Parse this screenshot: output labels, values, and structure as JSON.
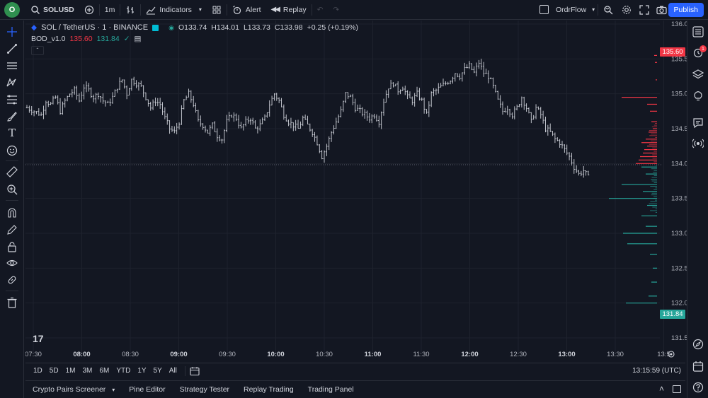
{
  "topbar": {
    "logo_letter": "O",
    "symbol": "SOLUSD",
    "interval": "1m",
    "indicators_label": "Indicators",
    "alert_label": "Alert",
    "replay_label": "Replay",
    "layout_name": "OrdrFlow",
    "publish_label": "Publish"
  },
  "legend": {
    "title": "SOL / TetherUS · 1 · BINANCE",
    "open": "O133.74",
    "high": "H134.01",
    "low": "L133.73",
    "close": "C133.98",
    "change": "+0.25 (+0.19%)",
    "indicator_name": "BOD_v1.0",
    "indicator_val1": "135.60",
    "indicator_val2": "131.84"
  },
  "price_axis": {
    "ticks": [
      "136.00",
      "135.50",
      "135.00",
      "134.50",
      "134.00",
      "133.50",
      "133.00",
      "132.50",
      "132.00",
      "131.50"
    ],
    "tag_upper": "135.60",
    "tag_lower": "131.84"
  },
  "time_axis": {
    "ticks": [
      "07:30",
      "08:00",
      "08:30",
      "09:00",
      "09:30",
      "10:00",
      "10:30",
      "11:00",
      "11:30",
      "12:00",
      "12:30",
      "13:00",
      "13:30",
      "13:5"
    ]
  },
  "range_bar": {
    "ranges": [
      "1D",
      "5D",
      "1M",
      "3M",
      "6M",
      "YTD",
      "1Y",
      "5Y",
      "All"
    ],
    "clock": "13:15:59 (UTC)"
  },
  "bottom_panel": {
    "tabs": [
      "Crypto Pairs Screener",
      "Pine Editor",
      "Strategy Tester",
      "Replay Trading",
      "Trading Panel"
    ]
  },
  "alerts_badge": "1",
  "colors": {
    "background": "#131722",
    "candle": "#d1d4dc",
    "up_profile": "#26a69a",
    "down_profile": "#f23645",
    "accent": "#2962ff",
    "tag_red": "#f23645",
    "tag_green": "#26a69a"
  },
  "chart_data": {
    "type": "ohlc",
    "symbol": "SOL / TetherUS",
    "ylim": [
      131.5,
      136.0
    ],
    "close_path": [
      [
        0,
        134.8
      ],
      [
        3,
        134.75
      ],
      [
        6,
        134.7
      ],
      [
        8,
        134.9
      ],
      [
        10,
        134.85
      ],
      [
        12,
        134.95
      ],
      [
        14,
        134.75
      ],
      [
        16,
        134.9
      ],
      [
        18,
        135.0
      ],
      [
        20,
        135.05
      ],
      [
        22,
        134.9
      ],
      [
        24,
        135.1
      ],
      [
        26,
        135.05
      ],
      [
        28,
        134.95
      ],
      [
        30,
        135.0
      ],
      [
        32,
        134.9
      ],
      [
        34,
        134.85
      ],
      [
        36,
        134.95
      ],
      [
        38,
        135.1
      ],
      [
        40,
        135.2
      ],
      [
        42,
        135.0
      ],
      [
        44,
        135.2
      ],
      [
        46,
        135.15
      ],
      [
        48,
        135.1
      ],
      [
        50,
        134.95
      ],
      [
        52,
        134.8
      ],
      [
        54,
        134.9
      ],
      [
        56,
        134.85
      ],
      [
        58,
        134.65
      ],
      [
        60,
        134.5
      ],
      [
        62,
        134.45
      ],
      [
        64,
        134.6
      ],
      [
        66,
        134.9
      ],
      [
        68,
        135.0
      ],
      [
        70,
        134.85
      ],
      [
        72,
        134.6
      ],
      [
        74,
        134.55
      ],
      [
        76,
        134.45
      ],
      [
        78,
        134.55
      ],
      [
        80,
        134.4
      ],
      [
        82,
        134.35
      ],
      [
        84,
        134.6
      ],
      [
        86,
        134.7
      ],
      [
        88,
        134.65
      ],
      [
        90,
        134.5
      ],
      [
        92,
        134.6
      ],
      [
        94,
        134.65
      ],
      [
        96,
        134.5
      ],
      [
        98,
        134.55
      ],
      [
        100,
        134.65
      ],
      [
        102,
        134.85
      ],
      [
        104,
        135.0
      ],
      [
        106,
        134.9
      ],
      [
        108,
        134.7
      ],
      [
        110,
        134.6
      ],
      [
        112,
        134.55
      ],
      [
        114,
        134.5
      ],
      [
        116,
        134.65
      ],
      [
        118,
        134.55
      ],
      [
        120,
        134.45
      ],
      [
        122,
        134.3
      ],
      [
        124,
        134.1
      ],
      [
        126,
        134.25
      ],
      [
        128,
        134.45
      ],
      [
        130,
        134.6
      ],
      [
        132,
        134.75
      ],
      [
        134,
        135.0
      ],
      [
        136,
        134.95
      ],
      [
        138,
        134.8
      ],
      [
        140,
        134.75
      ],
      [
        142,
        134.7
      ],
      [
        144,
        134.65
      ],
      [
        146,
        134.7
      ],
      [
        148,
        134.6
      ],
      [
        150,
        134.9
      ],
      [
        152,
        135.1
      ],
      [
        154,
        135.15
      ],
      [
        156,
        135.05
      ],
      [
        158,
        135.1
      ],
      [
        160,
        134.95
      ],
      [
        162,
        134.9
      ],
      [
        164,
        135.0
      ],
      [
        166,
        134.9
      ],
      [
        168,
        134.7
      ],
      [
        170,
        135.0
      ],
      [
        172,
        135.05
      ],
      [
        174,
        135.1
      ],
      [
        176,
        135.15
      ],
      [
        178,
        135.2
      ],
      [
        180,
        135.3
      ],
      [
        182,
        135.25
      ],
      [
        184,
        135.35
      ],
      [
        186,
        135.4
      ],
      [
        188,
        135.3
      ],
      [
        190,
        135.45
      ],
      [
        192,
        135.3
      ],
      [
        194,
        135.25
      ],
      [
        196,
        135.1
      ],
      [
        198,
        134.9
      ],
      [
        200,
        134.75
      ],
      [
        202,
        134.8
      ],
      [
        204,
        134.7
      ],
      [
        206,
        134.8
      ],
      [
        208,
        134.95
      ],
      [
        210,
        134.8
      ],
      [
        212,
        134.6
      ],
      [
        214,
        134.8
      ],
      [
        216,
        134.7
      ],
      [
        218,
        134.5
      ],
      [
        220,
        134.45
      ],
      [
        222,
        134.35
      ],
      [
        224,
        134.3
      ],
      [
        226,
        134.2
      ],
      [
        228,
        134.1
      ],
      [
        230,
        133.95
      ],
      [
        232,
        133.85
      ],
      [
        234,
        133.9
      ],
      [
        236,
        133.8
      ]
    ]
  }
}
